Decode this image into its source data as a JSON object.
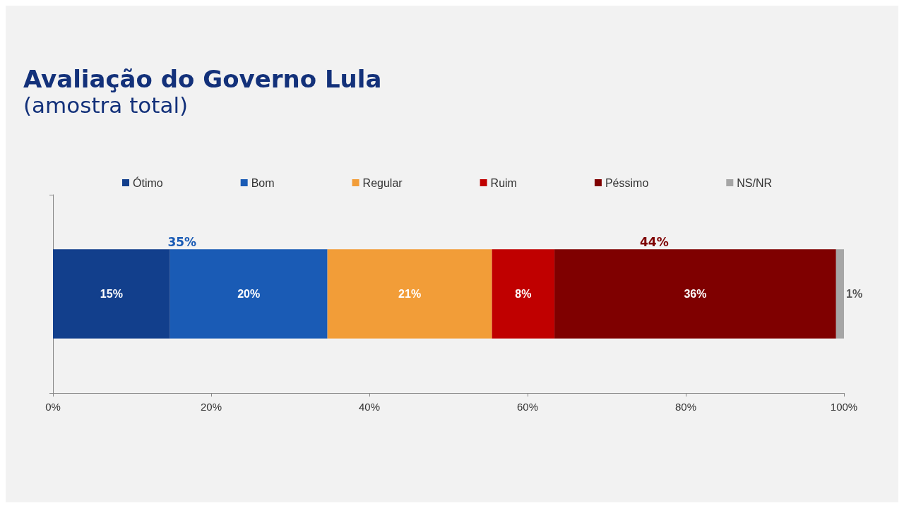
{
  "chart_data": {
    "type": "bar",
    "orientation": "horizontal",
    "stacked": true,
    "title": "Avaliação do Governo Lula",
    "subtitle": "(amostra total)",
    "categories": [
      null
    ],
    "series": [
      {
        "name": "Ótimo",
        "color": "#123f8c",
        "values": [
          14.8
        ],
        "value_labels": [
          "15%"
        ]
      },
      {
        "name": "Bom",
        "color": "#1a5bb5",
        "values": [
          19.9
        ],
        "value_labels": [
          "20%"
        ]
      },
      {
        "name": "Regular",
        "color": "#f29d38",
        "values": [
          20.8
        ],
        "value_labels": [
          "21%"
        ]
      },
      {
        "name": "Ruim",
        "color": "#c00000",
        "values": [
          7.9
        ],
        "value_labels": [
          "8%"
        ]
      },
      {
        "name": "Péssimo",
        "color": "#7f0000",
        "values": [
          35.6
        ],
        "value_labels": [
          "36%"
        ]
      },
      {
        "name": "NS/NR",
        "color": "#a6a6a6",
        "values": [
          1.0
        ],
        "value_labels": [
          "1%"
        ]
      }
    ],
    "annotations": [
      "35%",
      "44%"
    ],
    "xlim": [
      0,
      100
    ],
    "xticks": [
      {
        "value": 0,
        "label": "0%"
      },
      {
        "value": 20,
        "label": "20%"
      },
      {
        "value": 40,
        "label": "40%"
      },
      {
        "value": 60,
        "label": "60%"
      },
      {
        "value": 80,
        "label": "80%"
      },
      {
        "value": 100,
        "label": "100%"
      }
    ],
    "legend": "top",
    "grid": false
  }
}
